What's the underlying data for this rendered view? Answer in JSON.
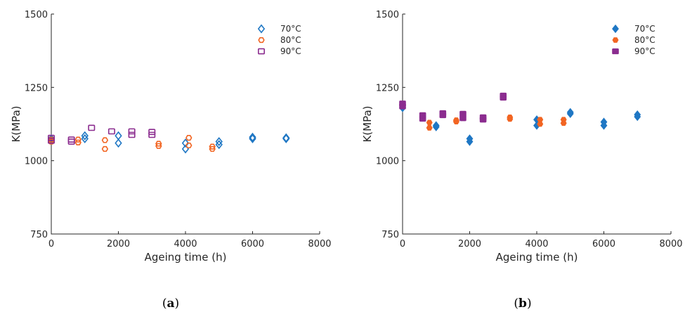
{
  "chart_data": [
    {
      "type": "scatter",
      "caption": "(a)",
      "caption_letter": "a",
      "xlabel": "Ageing time (h)",
      "ylabel": "K(MPa)",
      "xlim": [
        0,
        8000
      ],
      "ylim": [
        750,
        1500
      ],
      "xticks": [
        "0",
        "2000",
        "4000",
        "6000",
        "8000"
      ],
      "yticks": [
        "750",
        "1000",
        "1250",
        "1500"
      ],
      "grid": false,
      "legend_placement": "top-right",
      "filled": false,
      "series": [
        {
          "name": "70°C",
          "color": "#1f77c4",
          "marker": "diamond",
          "points": [
            [
              0,
              1070
            ],
            [
              0,
              1075
            ],
            [
              1000,
              1075
            ],
            [
              1000,
              1085
            ],
            [
              2000,
              1060
            ],
            [
              2000,
              1085
            ],
            [
              4000,
              1040
            ],
            [
              4000,
              1060
            ],
            [
              5000,
              1055
            ],
            [
              5000,
              1065
            ],
            [
              6000,
              1075
            ],
            [
              6000,
              1080
            ],
            [
              7000,
              1075
            ],
            [
              7000,
              1078
            ]
          ]
        },
        {
          "name": "80°C",
          "color": "#f26522",
          "marker": "hexagon",
          "points": [
            [
              0,
              1065
            ],
            [
              0,
              1072
            ],
            [
              800,
              1062
            ],
            [
              800,
              1072
            ],
            [
              1600,
              1040
            ],
            [
              1600,
              1070
            ],
            [
              3200,
              1050
            ],
            [
              3200,
              1058
            ],
            [
              4100,
              1052
            ],
            [
              4100,
              1078
            ],
            [
              4800,
              1040
            ],
            [
              4800,
              1048
            ]
          ]
        },
        {
          "name": "90°C",
          "color": "#8b2c8f",
          "marker": "square",
          "points": [
            [
              0,
              1068
            ],
            [
              0,
              1078
            ],
            [
              600,
              1065
            ],
            [
              600,
              1072
            ],
            [
              1200,
              1112
            ],
            [
              1800,
              1100
            ],
            [
              2400,
              1088
            ],
            [
              2400,
              1100
            ],
            [
              3000,
              1088
            ],
            [
              3000,
              1098
            ]
          ]
        }
      ]
    },
    {
      "type": "scatter",
      "caption": "(b)",
      "caption_letter": "b",
      "xlabel": "Ageing time (h)",
      "ylabel": "K(MPa)",
      "xlim": [
        0,
        8000
      ],
      "ylim": [
        750,
        1500
      ],
      "xticks": [
        "0",
        "2000",
        "4000",
        "6000",
        "8000"
      ],
      "yticks": [
        "750",
        "1000",
        "1250",
        "1500"
      ],
      "grid": false,
      "legend_placement": "top-right",
      "filled": true,
      "series": [
        {
          "name": "70°C",
          "color": "#1f77c4",
          "marker": "diamond",
          "points": [
            [
              0,
              1180
            ],
            [
              0,
              1190
            ],
            [
              1000,
              1115
            ],
            [
              1000,
              1120
            ],
            [
              2000,
              1065
            ],
            [
              2000,
              1075
            ],
            [
              4000,
              1120
            ],
            [
              4000,
              1140
            ],
            [
              5000,
              1160
            ],
            [
              5000,
              1165
            ],
            [
              6000,
              1120
            ],
            [
              6000,
              1132
            ],
            [
              7000,
              1150
            ],
            [
              7000,
              1157
            ]
          ]
        },
        {
          "name": "80°C",
          "color": "#f26522",
          "marker": "hexagon",
          "points": [
            [
              0,
              1185
            ],
            [
              0,
              1192
            ],
            [
              800,
              1112
            ],
            [
              800,
              1130
            ],
            [
              1600,
              1133
            ],
            [
              1600,
              1138
            ],
            [
              3200,
              1142
            ],
            [
              3200,
              1148
            ],
            [
              4100,
              1125
            ],
            [
              4100,
              1140
            ],
            [
              4800,
              1128
            ],
            [
              4800,
              1140
            ]
          ]
        },
        {
          "name": "90°C",
          "color": "#8b2c8f",
          "marker": "square",
          "points": [
            [
              0,
              1185
            ],
            [
              0,
              1195
            ],
            [
              600,
              1143
            ],
            [
              600,
              1155
            ],
            [
              1200,
              1155
            ],
            [
              1200,
              1162
            ],
            [
              1800,
              1145
            ],
            [
              1800,
              1160
            ],
            [
              2400,
              1140
            ],
            [
              2400,
              1148
            ],
            [
              3000,
              1215
            ],
            [
              3000,
              1222
            ]
          ]
        }
      ]
    }
  ]
}
